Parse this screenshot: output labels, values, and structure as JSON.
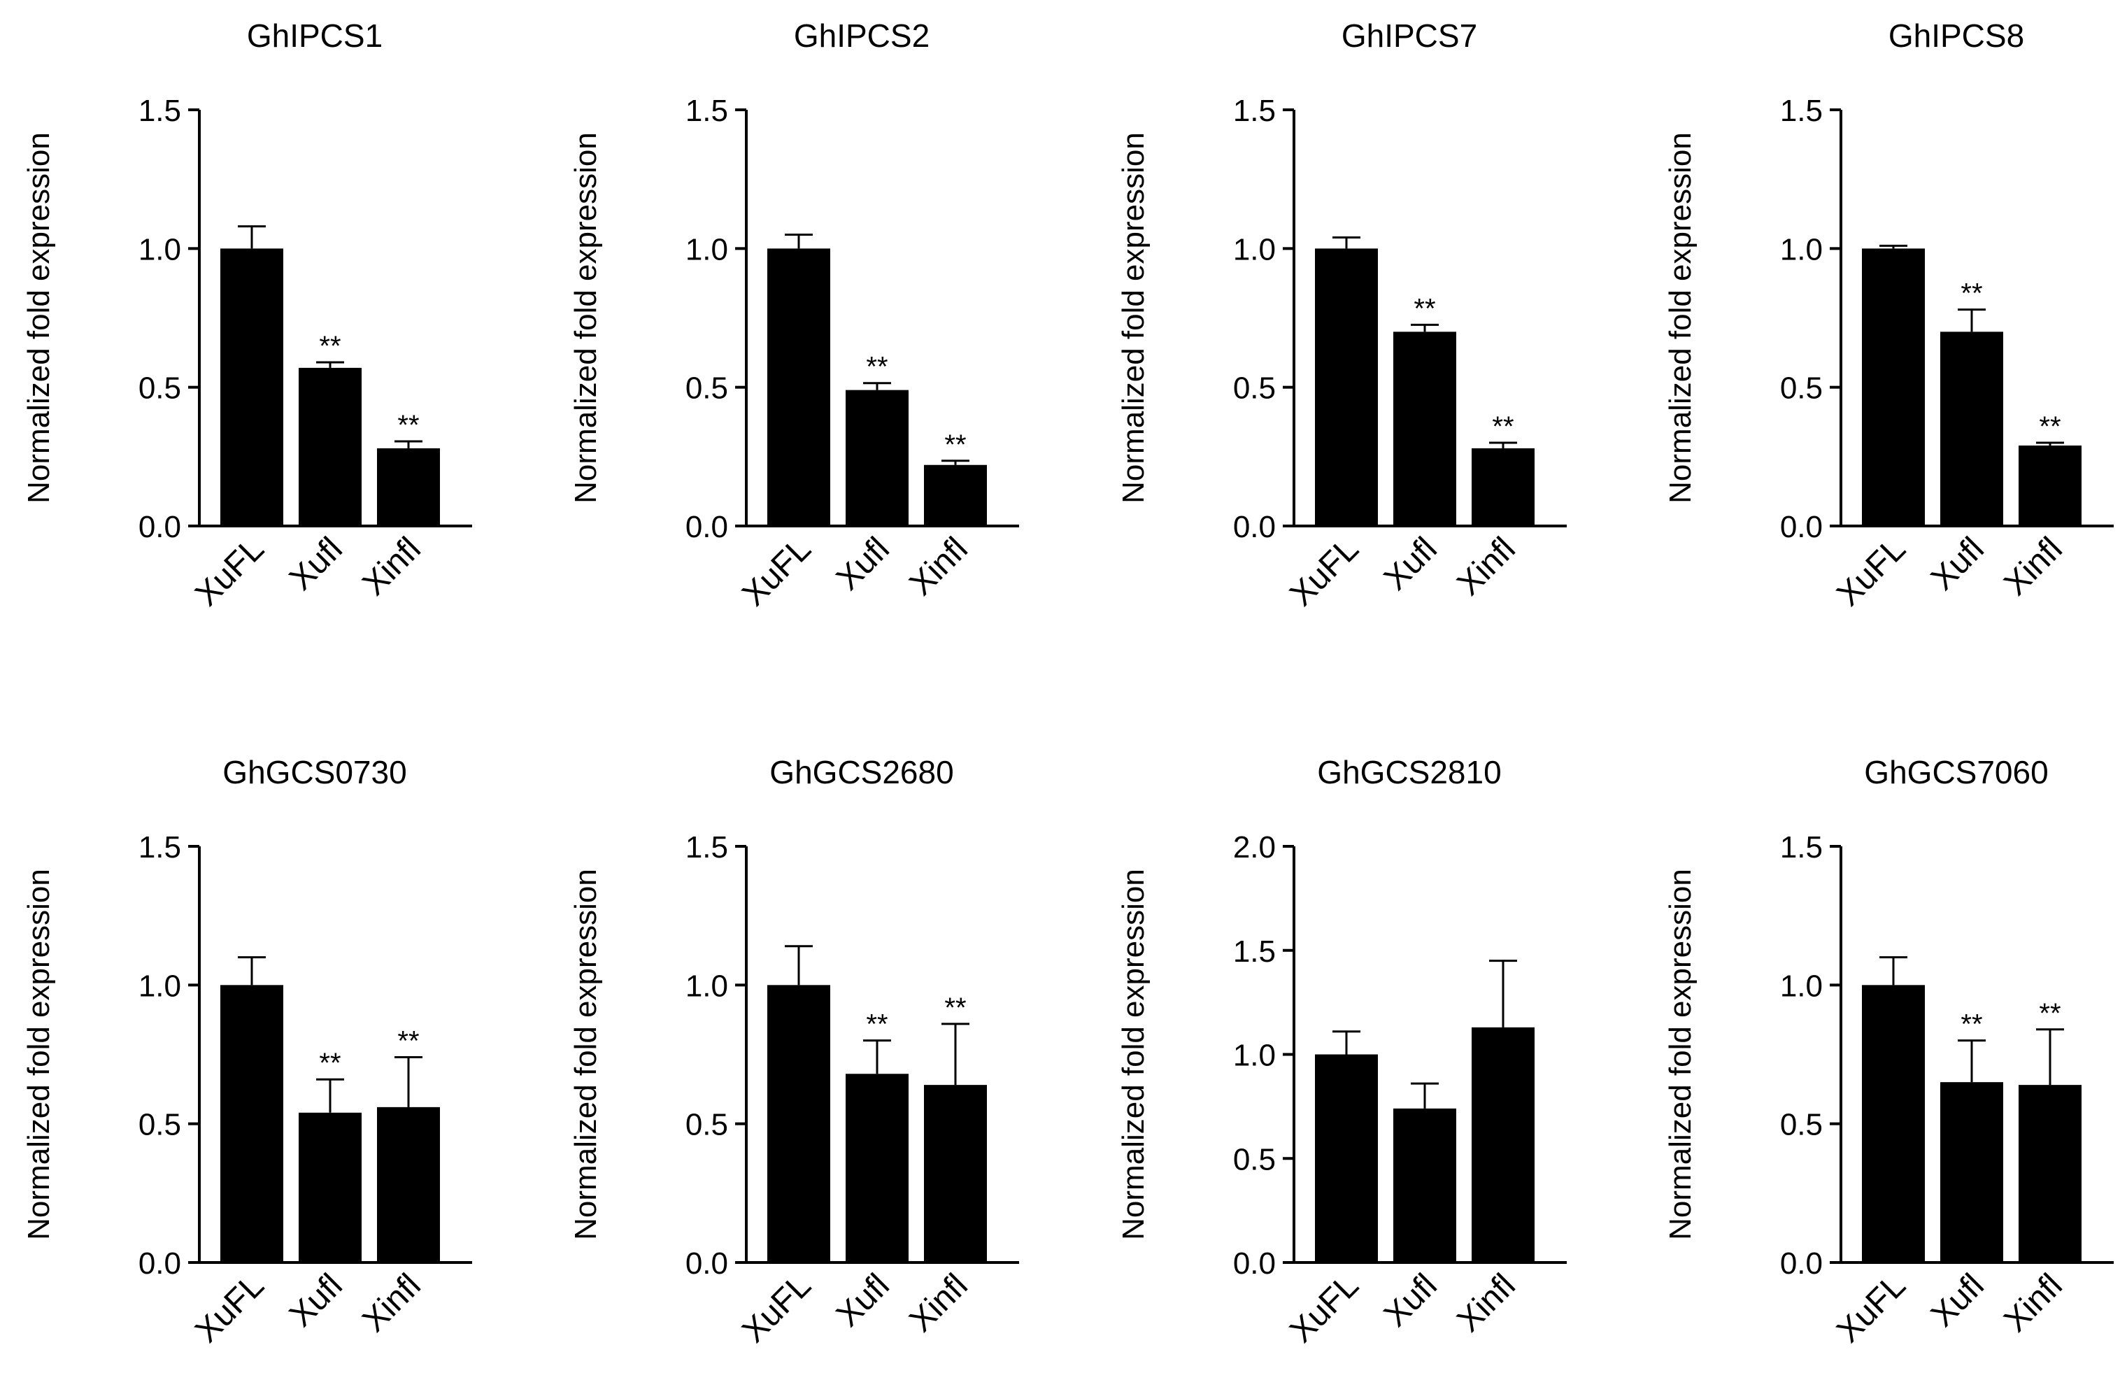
{
  "figure": {
    "background": "#ffffff",
    "bar_color": "#000000"
  },
  "chart_data": [
    {
      "type": "bar",
      "title": "GhIPCS1",
      "ylabel": "Normalized fold expression",
      "xlabel": "",
      "categories": [
        "XuFL",
        "Xufl",
        "Xinfl"
      ],
      "values": [
        1.0,
        0.57,
        0.28
      ],
      "errors": [
        0.08,
        0.02,
        0.025
      ],
      "significance": [
        "",
        "**",
        "**"
      ],
      "ylim": [
        0,
        1.5
      ],
      "yticks": [
        "0.0",
        "0.5",
        "1.0",
        "1.5"
      ]
    },
    {
      "type": "bar",
      "title": "GhIPCS2",
      "ylabel": "Normalized fold expression",
      "xlabel": "",
      "categories": [
        "XuFL",
        "Xufl",
        "Xinfl"
      ],
      "values": [
        1.0,
        0.49,
        0.22
      ],
      "errors": [
        0.05,
        0.025,
        0.015
      ],
      "significance": [
        "",
        "**",
        "**"
      ],
      "ylim": [
        0,
        1.5
      ],
      "yticks": [
        "0.0",
        "0.5",
        "1.0",
        "1.5"
      ]
    },
    {
      "type": "bar",
      "title": "GhIPCS7",
      "ylabel": "Normalized fold expression",
      "xlabel": "",
      "categories": [
        "XuFL",
        "Xufl",
        "Xinfl"
      ],
      "values": [
        1.0,
        0.7,
        0.28
      ],
      "errors": [
        0.04,
        0.025,
        0.02
      ],
      "significance": [
        "",
        "**",
        "**"
      ],
      "ylim": [
        0,
        1.5
      ],
      "yticks": [
        "0.0",
        "0.5",
        "1.0",
        "1.5"
      ]
    },
    {
      "type": "bar",
      "title": "GhIPCS8",
      "ylabel": "Normalized fold expression",
      "xlabel": "",
      "categories": [
        "XuFL",
        "Xufl",
        "Xinfl"
      ],
      "values": [
        1.0,
        0.7,
        0.29
      ],
      "errors": [
        0.01,
        0.08,
        0.01
      ],
      "significance": [
        "",
        "**",
        "**"
      ],
      "ylim": [
        0,
        1.5
      ],
      "yticks": [
        "0.0",
        "0.5",
        "1.0",
        "1.5"
      ]
    },
    {
      "type": "bar",
      "title": "GhGCS0730",
      "ylabel": "Normalized fold expression",
      "xlabel": "",
      "categories": [
        "XuFL",
        "Xufl",
        "Xinfl"
      ],
      "values": [
        1.0,
        0.54,
        0.56
      ],
      "errors": [
        0.1,
        0.12,
        0.18
      ],
      "significance": [
        "",
        "**",
        "**"
      ],
      "ylim": [
        0,
        1.5
      ],
      "yticks": [
        "0.0",
        "0.5",
        "1.0",
        "1.5"
      ]
    },
    {
      "type": "bar",
      "title": "GhGCS2680",
      "ylabel": "Normalized fold expression",
      "xlabel": "",
      "categories": [
        "XuFL",
        "Xufl",
        "Xinfl"
      ],
      "values": [
        1.0,
        0.68,
        0.64
      ],
      "errors": [
        0.14,
        0.12,
        0.22
      ],
      "significance": [
        "",
        "**",
        "**"
      ],
      "ylim": [
        0,
        1.5
      ],
      "yticks": [
        "0.0",
        "0.5",
        "1.0",
        "1.5"
      ]
    },
    {
      "type": "bar",
      "title": "GhGCS2810",
      "ylabel": "Normalized fold expression",
      "xlabel": "",
      "categories": [
        "XuFL",
        "Xufl",
        "Xinfl"
      ],
      "values": [
        1.0,
        0.74,
        1.13
      ],
      "errors": [
        0.11,
        0.12,
        0.32
      ],
      "significance": [
        "",
        "",
        ""
      ],
      "ylim": [
        0,
        2.0
      ],
      "yticks": [
        "0.0",
        "0.5",
        "1.0",
        "1.5",
        "2.0"
      ]
    },
    {
      "type": "bar",
      "title": "GhGCS7060",
      "ylabel": "Normalized fold expression",
      "xlabel": "",
      "categories": [
        "XuFL",
        "Xufl",
        "Xinfl"
      ],
      "values": [
        1.0,
        0.65,
        0.64
      ],
      "errors": [
        0.1,
        0.15,
        0.2
      ],
      "significance": [
        "",
        "**",
        "**"
      ],
      "ylim": [
        0,
        1.5
      ],
      "yticks": [
        "0.0",
        "0.5",
        "1.0",
        "1.5"
      ]
    }
  ]
}
